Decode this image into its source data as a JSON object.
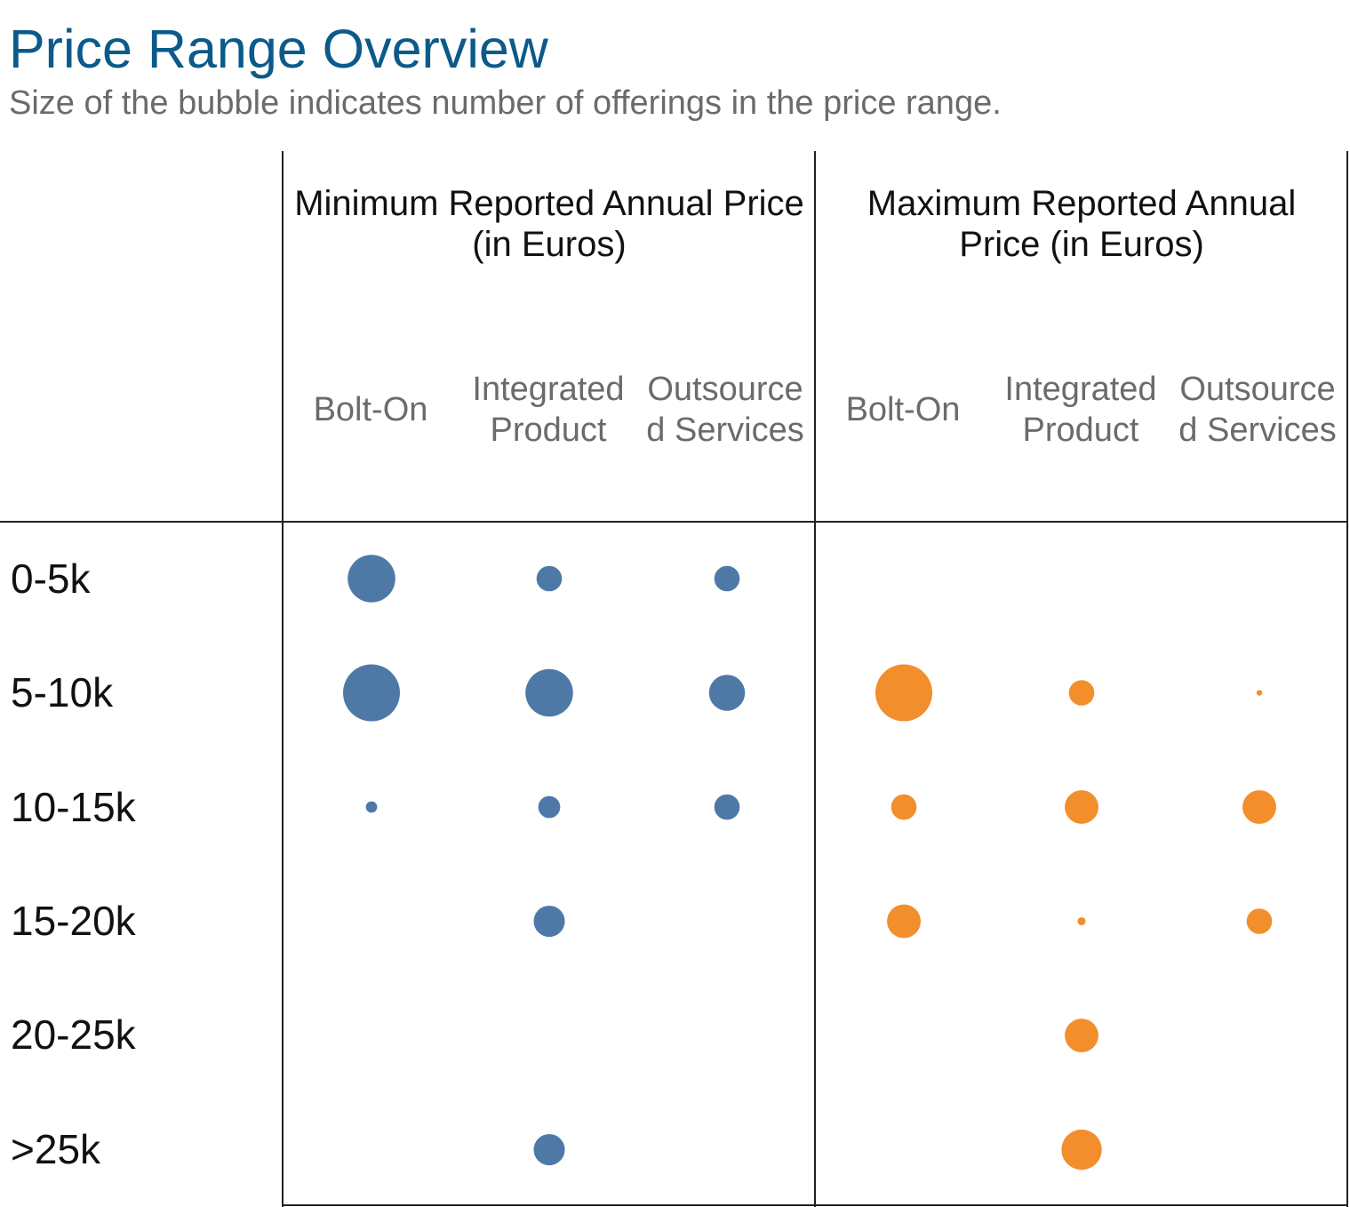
{
  "title": "Price Range Overview",
  "subtitle": "Size of the bubble indicates number of offerings in the price range.",
  "chart_data": {
    "type": "scatter",
    "groups": [
      {
        "label": "Minimum Reported Annual Price (in Euros)",
        "color": "#4e79a7",
        "columns": [
          "Bolt-On",
          "Integrated Product",
          "Outsourced Services"
        ]
      },
      {
        "label": "Maximum Reported Annual Price (in Euros)",
        "color": "#f28e2b",
        "columns": [
          "Bolt-On",
          "Integrated Product",
          "Outsourced Services"
        ]
      }
    ],
    "column_labels": [
      [
        "Bolt-On"
      ],
      [
        "Integrated",
        "Product"
      ],
      [
        "Outsource",
        "d Services"
      ],
      [
        "Bolt-On"
      ],
      [
        "Integrated",
        "Product"
      ],
      [
        "Outsource",
        "d Services"
      ]
    ],
    "group_label_lines": [
      [
        "Minimum Reported Annual Price",
        "(in Euros)"
      ],
      [
        "Maximum Reported Annual",
        "Price (in Euros)"
      ]
    ],
    "rows": [
      "0-5k",
      "5-10k",
      "10-15k",
      "15-20k",
      "20-25k",
      ">25k"
    ],
    "points": [
      {
        "group": 0,
        "column": 0,
        "row": "0-5k",
        "size": 7
      },
      {
        "group": 0,
        "column": 1,
        "row": "0-5k",
        "size": 2
      },
      {
        "group": 0,
        "column": 2,
        "row": "0-5k",
        "size": 2
      },
      {
        "group": 0,
        "column": 0,
        "row": "5-10k",
        "size": 10
      },
      {
        "group": 0,
        "column": 1,
        "row": "5-10k",
        "size": 7
      },
      {
        "group": 0,
        "column": 2,
        "row": "5-10k",
        "size": 4
      },
      {
        "group": 0,
        "column": 0,
        "row": "10-15k",
        "size": 0.4
      },
      {
        "group": 0,
        "column": 1,
        "row": "10-15k",
        "size": 1.5
      },
      {
        "group": 0,
        "column": 2,
        "row": "10-15k",
        "size": 2
      },
      {
        "group": 0,
        "column": 1,
        "row": "15-20k",
        "size": 3
      },
      {
        "group": 0,
        "column": 1,
        "row": ">25k",
        "size": 3
      },
      {
        "group": 1,
        "column": 0,
        "row": "5-10k",
        "size": 10
      },
      {
        "group": 1,
        "column": 1,
        "row": "5-10k",
        "size": 2
      },
      {
        "group": 1,
        "column": 2,
        "row": "5-10k",
        "size": 0.1
      },
      {
        "group": 1,
        "column": 0,
        "row": "10-15k",
        "size": 2
      },
      {
        "group": 1,
        "column": 1,
        "row": "10-15k",
        "size": 3.5
      },
      {
        "group": 1,
        "column": 2,
        "row": "10-15k",
        "size": 3.5
      },
      {
        "group": 1,
        "column": 0,
        "row": "15-20k",
        "size": 3.5
      },
      {
        "group": 1,
        "column": 1,
        "row": "15-20k",
        "size": 0.2
      },
      {
        "group": 1,
        "column": 2,
        "row": "15-20k",
        "size": 2
      },
      {
        "group": 1,
        "column": 1,
        "row": "20-25k",
        "size": 3.5
      },
      {
        "group": 1,
        "column": 1,
        "row": ">25k",
        "size": 5
      }
    ]
  }
}
